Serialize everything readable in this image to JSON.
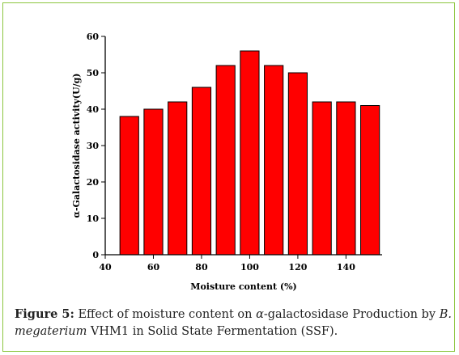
{
  "chart_data": {
    "type": "bar",
    "x": [
      50,
      60,
      70,
      80,
      90,
      100,
      110,
      120,
      130,
      140,
      150
    ],
    "values": [
      38,
      40,
      42,
      46,
      52,
      56,
      52,
      50,
      42,
      42,
      41
    ],
    "xlabel": "Moisture content (%)",
    "ylabel": "α-Galactosidase activity(U/g)",
    "xlim": [
      40,
      155
    ],
    "ylim": [
      0,
      60
    ],
    "xticks": [
      40,
      60,
      80,
      100,
      120,
      140
    ],
    "yticks": [
      0,
      10,
      20,
      30,
      40,
      50,
      60
    ],
    "grid": false,
    "bar_color": "#ff0000"
  },
  "caption": {
    "label": "Figure 5:",
    "text_1": " Effect of moisture content on ",
    "alpha": "α",
    "text_2": "-galactosidase Production by ",
    "species": "B. megaterium",
    "text_3": " VHM1 in Solid State Fermentation (SSF)."
  }
}
